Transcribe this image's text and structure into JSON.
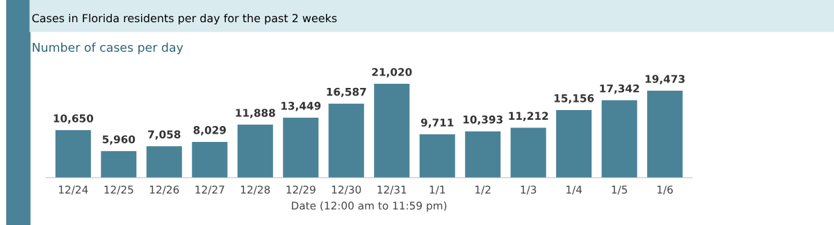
{
  "chart_data": {
    "type": "bar",
    "title": "Cases in Florida residents per day for the past 2 weeks",
    "subtitle": "Number of cases per day",
    "xlabel": "Date (12:00 am to 11:59 pm)",
    "categories": [
      "12/24",
      "12/25",
      "12/26",
      "12/27",
      "12/28",
      "12/29",
      "12/30",
      "12/31",
      "1/1",
      "1/2",
      "1/3",
      "1/4",
      "1/5",
      "1/6"
    ],
    "values": [
      10650,
      5960,
      7058,
      8029,
      11888,
      13449,
      16587,
      21020,
      9711,
      10393,
      11212,
      15156,
      17342,
      19473
    ],
    "value_labels": [
      "10,650",
      "5,960",
      "7,058",
      "8,029",
      "11,888",
      "13,449",
      "16,587",
      "21,020",
      "9,711",
      "10,393",
      "11,212",
      "15,156",
      "17,342",
      "19,473"
    ],
    "color": "#4a8398",
    "tick_labels": "x"
  }
}
